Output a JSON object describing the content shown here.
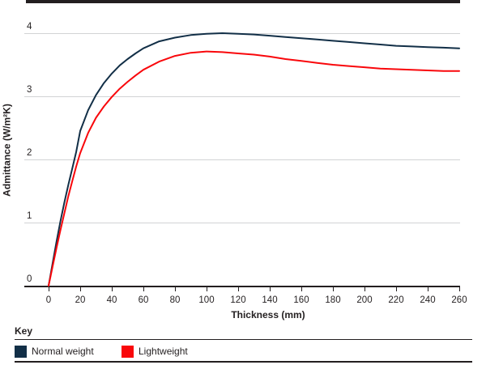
{
  "page": {
    "top_bar_color": "#231f20",
    "axis_color": "#231f20",
    "gridline_color": "#d2d3d5",
    "background_color": "#ffffff"
  },
  "key": {
    "title": "Key"
  },
  "chart_data": {
    "type": "line",
    "title": "",
    "xlabel": "Thickness (mm)",
    "ylabel": "Admittance (W/m²K)",
    "xlim": [
      0,
      260
    ],
    "ylim": [
      0,
      4.15
    ],
    "x_ticks": [
      0,
      20,
      40,
      60,
      80,
      100,
      120,
      140,
      160,
      180,
      200,
      220,
      240,
      260
    ],
    "y_ticks": [
      0,
      1,
      2,
      3,
      4
    ],
    "grid": "horizontal",
    "legend_position": "bottom",
    "series": [
      {
        "name": "Normal weight",
        "color": "#122f47",
        "points": [
          [
            0,
            0
          ],
          [
            2.5,
            0.35
          ],
          [
            5,
            0.7
          ],
          [
            7.5,
            1.02
          ],
          [
            10,
            1.32
          ],
          [
            12.5,
            1.6
          ],
          [
            15,
            1.86
          ],
          [
            17.5,
            2.12
          ],
          [
            20,
            2.45
          ],
          [
            25,
            2.78
          ],
          [
            30,
            3.02
          ],
          [
            35,
            3.21
          ],
          [
            40,
            3.36
          ],
          [
            45,
            3.49
          ],
          [
            50,
            3.59
          ],
          [
            55,
            3.68
          ],
          [
            60,
            3.76
          ],
          [
            70,
            3.87
          ],
          [
            80,
            3.93
          ],
          [
            90,
            3.97
          ],
          [
            100,
            3.99
          ],
          [
            110,
            4.0
          ],
          [
            120,
            3.99
          ],
          [
            130,
            3.98
          ],
          [
            140,
            3.96
          ],
          [
            150,
            3.94
          ],
          [
            160,
            3.92
          ],
          [
            170,
            3.9
          ],
          [
            180,
            3.88
          ],
          [
            190,
            3.86
          ],
          [
            200,
            3.84
          ],
          [
            210,
            3.82
          ],
          [
            220,
            3.8
          ],
          [
            230,
            3.79
          ],
          [
            240,
            3.78
          ],
          [
            250,
            3.77
          ],
          [
            260,
            3.76
          ]
        ]
      },
      {
        "name": "Lightweight",
        "color": "#f9070b",
        "points": [
          [
            0,
            0
          ],
          [
            2.5,
            0.3
          ],
          [
            5,
            0.6
          ],
          [
            7.5,
            0.88
          ],
          [
            10,
            1.15
          ],
          [
            12.5,
            1.42
          ],
          [
            15,
            1.66
          ],
          [
            17.5,
            1.89
          ],
          [
            20,
            2.1
          ],
          [
            25,
            2.42
          ],
          [
            30,
            2.66
          ],
          [
            35,
            2.84
          ],
          [
            40,
            2.99
          ],
          [
            45,
            3.12
          ],
          [
            50,
            3.23
          ],
          [
            55,
            3.33
          ],
          [
            60,
            3.42
          ],
          [
            70,
            3.55
          ],
          [
            80,
            3.64
          ],
          [
            90,
            3.69
          ],
          [
            100,
            3.71
          ],
          [
            110,
            3.7
          ],
          [
            120,
            3.68
          ],
          [
            130,
            3.66
          ],
          [
            140,
            3.63
          ],
          [
            150,
            3.59
          ],
          [
            160,
            3.56
          ],
          [
            170,
            3.53
          ],
          [
            180,
            3.5
          ],
          [
            190,
            3.48
          ],
          [
            200,
            3.46
          ],
          [
            210,
            3.44
          ],
          [
            220,
            3.43
          ],
          [
            230,
            3.42
          ],
          [
            240,
            3.41
          ],
          [
            250,
            3.4
          ],
          [
            260,
            3.4
          ]
        ]
      }
    ]
  }
}
